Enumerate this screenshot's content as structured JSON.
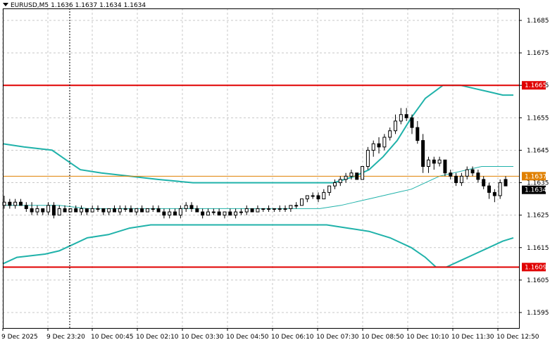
{
  "header": {
    "symbol": "EURUSD,M5",
    "open": "1.1636",
    "high": "1.1637",
    "low": "1.1634",
    "close": "1.1634"
  },
  "colors": {
    "background": "#ffffff",
    "grid": "#c8c8c8",
    "band": "#20b2aa",
    "middle_band": "#20b2aa",
    "support_resistance": "#e00000",
    "bid_line": "#e08000",
    "candle": "#000000",
    "price_badge": "#000000"
  },
  "chart_data": {
    "type": "candlestick",
    "symbol": "EURUSD",
    "timeframe": "M5",
    "ylim": [
      1.159,
      1.169
    ],
    "y_ticks": [
      "1.1685",
      "1.1675",
      "1.1665",
      "1.1655",
      "1.1645",
      "1.1635",
      "1.1625",
      "1.1615",
      "1.1605",
      "1.1595"
    ],
    "x_ticks": [
      "9 Dec 2025",
      "9 Dec 23:20",
      "10 Dec 00:45",
      "10 Dec 02:10",
      "10 Dec 03:30",
      "10 Dec 04:50",
      "10 Dec 06:10",
      "10 Dec 07:30",
      "10 Dec 08:50",
      "10 Dec 10:10",
      "10 Dec 11:30",
      "10 Dec 12:50"
    ],
    "horizontal_lines": [
      {
        "label": "1.1665",
        "value": 1.1665,
        "color": "#e00000"
      },
      {
        "label": "1.1637",
        "value": 1.1637,
        "color": "#e08000"
      },
      {
        "label": "1.1609",
        "value": 1.1609,
        "color": "#e00000"
      }
    ],
    "current_price": {
      "label": "1.1634",
      "value": 1.1634
    },
    "upper_band": [
      [
        0,
        1.1647
      ],
      [
        30,
        1.1646
      ],
      [
        70,
        1.1645
      ],
      [
        90,
        1.1642
      ],
      [
        110,
        1.1639
      ],
      [
        140,
        1.1638
      ],
      [
        180,
        1.1637
      ],
      [
        220,
        1.1636
      ],
      [
        270,
        1.1635
      ],
      [
        350,
        1.1635
      ],
      [
        430,
        1.1635
      ],
      [
        470,
        1.1635
      ],
      [
        500,
        1.1637
      ],
      [
        520,
        1.1639
      ],
      [
        540,
        1.1643
      ],
      [
        560,
        1.1648
      ],
      [
        580,
        1.1655
      ],
      [
        600,
        1.1661
      ],
      [
        625,
        1.1665
      ],
      [
        650,
        1.1665
      ],
      [
        670,
        1.1664
      ],
      [
        690,
        1.1663
      ],
      [
        710,
        1.1662
      ],
      [
        725,
        1.1662
      ]
    ],
    "middle_band": [
      [
        0,
        1.1628
      ],
      [
        40,
        1.1628
      ],
      [
        80,
        1.1628
      ],
      [
        120,
        1.1627
      ],
      [
        200,
        1.1627
      ],
      [
        300,
        1.1627
      ],
      [
        400,
        1.1627
      ],
      [
        450,
        1.1627
      ],
      [
        480,
        1.1628
      ],
      [
        500,
        1.1629
      ],
      [
        520,
        1.163
      ],
      [
        540,
        1.1631
      ],
      [
        560,
        1.1632
      ],
      [
        580,
        1.1633
      ],
      [
        600,
        1.1635
      ],
      [
        620,
        1.1637
      ],
      [
        640,
        1.1638
      ],
      [
        660,
        1.1639
      ],
      [
        680,
        1.164
      ],
      [
        700,
        1.164
      ],
      [
        725,
        1.164
      ]
    ],
    "lower_band": [
      [
        0,
        1.161
      ],
      [
        20,
        1.1612
      ],
      [
        60,
        1.1613
      ],
      [
        80,
        1.1614
      ],
      [
        100,
        1.1616
      ],
      [
        120,
        1.1618
      ],
      [
        150,
        1.1619
      ],
      [
        180,
        1.1621
      ],
      [
        210,
        1.1622
      ],
      [
        260,
        1.1622
      ],
      [
        350,
        1.1622
      ],
      [
        430,
        1.1622
      ],
      [
        460,
        1.1622
      ],
      [
        490,
        1.1621
      ],
      [
        520,
        1.162
      ],
      [
        550,
        1.1618
      ],
      [
        580,
        1.1615
      ],
      [
        600,
        1.1612
      ],
      [
        615,
        1.1609
      ],
      [
        630,
        1.1609
      ],
      [
        650,
        1.1611
      ],
      [
        670,
        1.1613
      ],
      [
        690,
        1.1615
      ],
      [
        710,
        1.1617
      ],
      [
        725,
        1.1618
      ]
    ],
    "ohlc": [
      [
        1.1628,
        1.1631,
        1.1627,
        1.1629
      ],
      [
        1.1629,
        1.163,
        1.1627,
        1.1628
      ],
      [
        1.1628,
        1.163,
        1.1627,
        1.1629
      ],
      [
        1.1629,
        1.163,
        1.1628,
        1.1628
      ],
      [
        1.1628,
        1.1629,
        1.1626,
        1.1627
      ],
      [
        1.1627,
        1.1629,
        1.1625,
        1.1626
      ],
      [
        1.1626,
        1.1628,
        1.1625,
        1.1627
      ],
      [
        1.1627,
        1.1627,
        1.1625,
        1.1626
      ],
      [
        1.1626,
        1.1629,
        1.1625,
        1.1628
      ],
      [
        1.1628,
        1.1629,
        1.1624,
        1.1625
      ],
      [
        1.1625,
        1.1628,
        1.1625,
        1.1627
      ],
      [
        1.1627,
        1.1628,
        1.1626,
        1.1626
      ],
      [
        1.1626,
        1.1627,
        1.1626,
        1.1627
      ],
      [
        1.1627,
        1.1628,
        1.1626,
        1.1626
      ],
      [
        1.1626,
        1.1628,
        1.1625,
        1.1627
      ],
      [
        1.1627,
        1.1627,
        1.1625,
        1.1626
      ],
      [
        1.1626,
        1.1628,
        1.1626,
        1.1627
      ],
      [
        1.1627,
        1.1628,
        1.1626,
        1.1627
      ],
      [
        1.1627,
        1.1627,
        1.1625,
        1.1626
      ],
      [
        1.1626,
        1.1627,
        1.1625,
        1.1627
      ],
      [
        1.1627,
        1.1628,
        1.1626,
        1.1626
      ],
      [
        1.1626,
        1.1628,
        1.1625,
        1.1627
      ],
      [
        1.1627,
        1.1628,
        1.1626,
        1.1627
      ],
      [
        1.1627,
        1.1628,
        1.1626,
        1.1626
      ],
      [
        1.1626,
        1.1627,
        1.1625,
        1.1627
      ],
      [
        1.1627,
        1.1628,
        1.1626,
        1.1626
      ],
      [
        1.1626,
        1.1627,
        1.1626,
        1.1627
      ],
      [
        1.1627,
        1.1628,
        1.1626,
        1.1627
      ],
      [
        1.1627,
        1.1628,
        1.1626,
        1.1626
      ],
      [
        1.1626,
        1.1627,
        1.1624,
        1.1625
      ],
      [
        1.1625,
        1.1627,
        1.1624,
        1.1626
      ],
      [
        1.1626,
        1.1627,
        1.1625,
        1.1625
      ],
      [
        1.1625,
        1.1628,
        1.1624,
        1.1627
      ],
      [
        1.1627,
        1.1629,
        1.1626,
        1.1628
      ],
      [
        1.1628,
        1.1629,
        1.1626,
        1.1627
      ],
      [
        1.1627,
        1.1628,
        1.1626,
        1.1626
      ],
      [
        1.1626,
        1.1627,
        1.1624,
        1.1625
      ],
      [
        1.1625,
        1.1627,
        1.1625,
        1.1626
      ],
      [
        1.1626,
        1.1627,
        1.1625,
        1.1626
      ],
      [
        1.1626,
        1.1627,
        1.1625,
        1.1625
      ],
      [
        1.1625,
        1.1626,
        1.1624,
        1.1626
      ],
      [
        1.1626,
        1.1627,
        1.1625,
        1.1625
      ],
      [
        1.1625,
        1.1627,
        1.1624,
        1.1626
      ],
      [
        1.1626,
        1.1627,
        1.1625,
        1.1626
      ],
      [
        1.1626,
        1.1628,
        1.1625,
        1.1627
      ],
      [
        1.1627,
        1.1627,
        1.1626,
        1.1626
      ],
      [
        1.1626,
        1.1628,
        1.1626,
        1.1627
      ],
      [
        1.1627,
        1.1627,
        1.1626,
        1.1627
      ],
      [
        1.1627,
        1.1628,
        1.1626,
        1.1627
      ],
      [
        1.1627,
        1.1627,
        1.1626,
        1.1627
      ],
      [
        1.1627,
        1.1628,
        1.1626,
        1.1627
      ],
      [
        1.1627,
        1.1628,
        1.1626,
        1.1627
      ],
      [
        1.1627,
        1.1628,
        1.1626,
        1.1628
      ],
      [
        1.1628,
        1.1629,
        1.1627,
        1.1628
      ],
      [
        1.1628,
        1.163,
        1.1628,
        1.163
      ],
      [
        1.163,
        1.1631,
        1.1629,
        1.1631
      ],
      [
        1.1631,
        1.1632,
        1.163,
        1.1631
      ],
      [
        1.1631,
        1.1632,
        1.1629,
        1.163
      ],
      [
        1.163,
        1.1633,
        1.163,
        1.1632
      ],
      [
        1.1632,
        1.1634,
        1.1631,
        1.1634
      ],
      [
        1.1634,
        1.1636,
        1.1633,
        1.1635
      ],
      [
        1.1635,
        1.1637,
        1.1634,
        1.1636
      ],
      [
        1.1636,
        1.1638,
        1.1635,
        1.1637
      ],
      [
        1.1637,
        1.1639,
        1.1636,
        1.1638
      ],
      [
        1.1638,
        1.1638,
        1.1636,
        1.1636
      ],
      [
        1.1636,
        1.164,
        1.1636,
        1.164
      ],
      [
        1.164,
        1.1646,
        1.1639,
        1.1645
      ],
      [
        1.1645,
        1.1648,
        1.1643,
        1.1647
      ],
      [
        1.1647,
        1.1649,
        1.1644,
        1.1646
      ],
      [
        1.1646,
        1.165,
        1.1645,
        1.1649
      ],
      [
        1.1649,
        1.1652,
        1.1648,
        1.1651
      ],
      [
        1.1651,
        1.1656,
        1.165,
        1.1654
      ],
      [
        1.1654,
        1.1658,
        1.1653,
        1.1656
      ],
      [
        1.1656,
        1.1658,
        1.1654,
        1.1655
      ],
      [
        1.1655,
        1.1656,
        1.165,
        1.1652
      ],
      [
        1.1652,
        1.1654,
        1.1647,
        1.1648
      ],
      [
        1.1648,
        1.165,
        1.1638,
        1.164
      ],
      [
        1.164,
        1.1643,
        1.1638,
        1.1642
      ],
      [
        1.1642,
        1.1643,
        1.1639,
        1.1641
      ],
      [
        1.1641,
        1.1643,
        1.164,
        1.1642
      ],
      [
        1.1642,
        1.1642,
        1.1637,
        1.1638
      ],
      [
        1.1638,
        1.1639,
        1.1636,
        1.1637
      ],
      [
        1.1637,
        1.1638,
        1.1634,
        1.1635
      ],
      [
        1.1635,
        1.1638,
        1.1634,
        1.1637
      ],
      [
        1.1637,
        1.164,
        1.1636,
        1.1639
      ],
      [
        1.1639,
        1.164,
        1.1637,
        1.1638
      ],
      [
        1.1638,
        1.1639,
        1.1635,
        1.1636
      ],
      [
        1.1636,
        1.1637,
        1.1633,
        1.1634
      ],
      [
        1.1634,
        1.1635,
        1.163,
        1.1632
      ],
      [
        1.1632,
        1.1633,
        1.1629,
        1.1631
      ],
      [
        1.1631,
        1.1636,
        1.163,
        1.1635
      ],
      [
        1.1636,
        1.1637,
        1.1634,
        1.1634
      ]
    ]
  }
}
